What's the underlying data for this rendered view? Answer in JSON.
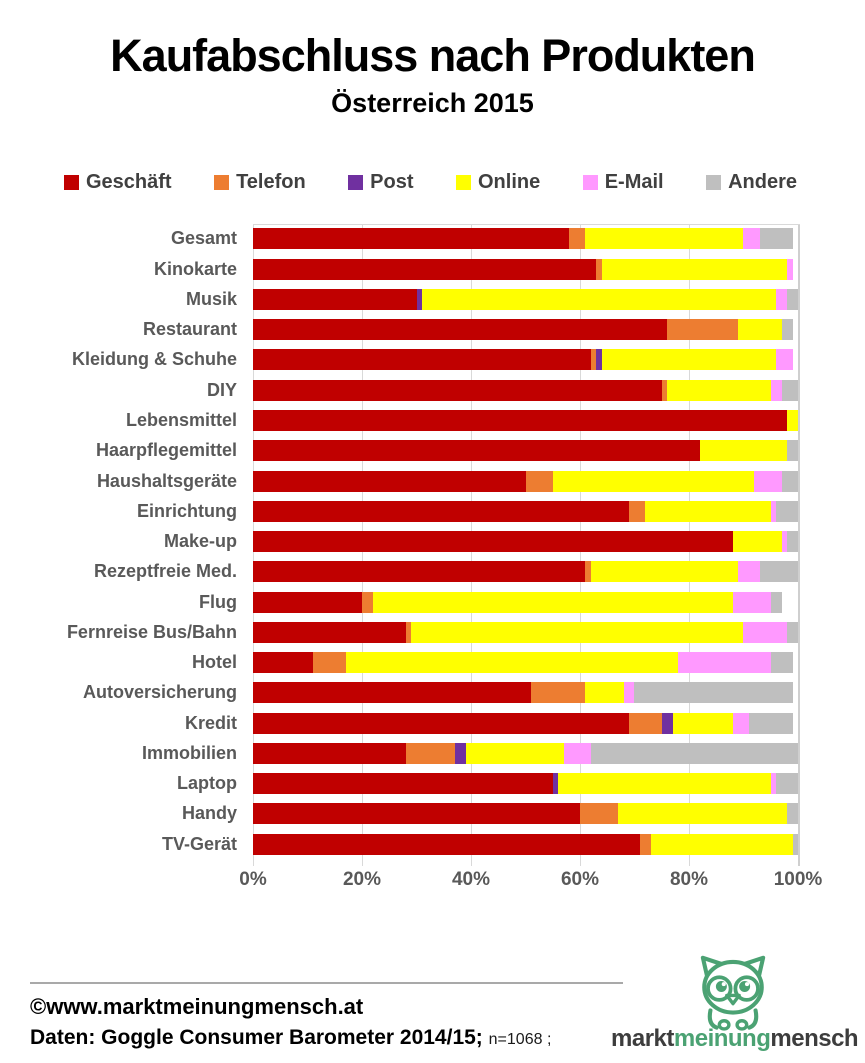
{
  "header": {
    "title": "Kaufabschluss nach Produkten",
    "subtitle": "Österreich 2015"
  },
  "chart_data": {
    "type": "bar",
    "subtype": "horizontal-stacked",
    "title": "Kaufabschluss nach Produkten",
    "subtitle": "Österreich 2015",
    "xlabel": "",
    "ylabel": "",
    "xlim": [
      0,
      100
    ],
    "x_ticks": [
      "0%",
      "20%",
      "40%",
      "60%",
      "80%",
      "100%"
    ],
    "grid": "vertical",
    "legend_position": "top",
    "unit": "percent",
    "categories": [
      "Gesamt",
      "Kinokarte",
      "Musik",
      "Restaurant",
      "Kleidung & Schuhe",
      "DIY",
      "Lebensmittel",
      "Haarpflegemittel",
      "Haushaltsgeräte",
      "Einrichtung",
      "Make-up",
      "Rezeptfreie Med.",
      "Flug",
      "Fernreise Bus/Bahn",
      "Hotel",
      "Autoversicherung",
      "Kredit",
      "Immobilien",
      "Laptop",
      "Handy",
      "TV-Gerät"
    ],
    "series": [
      {
        "name": "Geschäft",
        "color": "#C00000",
        "values": [
          58,
          63,
          30,
          76,
          62,
          75,
          98,
          82,
          50,
          69,
          88,
          61,
          20,
          28,
          11,
          51,
          69,
          28,
          55,
          60,
          71
        ]
      },
      {
        "name": "Telefon",
        "color": "#ED7D31",
        "values": [
          3,
          1,
          0,
          13,
          1,
          1,
          0,
          0,
          5,
          3,
          0,
          1,
          2,
          1,
          6,
          10,
          6,
          9,
          0,
          7,
          2
        ]
      },
      {
        "name": "Post",
        "color": "#7030A0",
        "values": [
          0,
          0,
          1,
          0,
          1,
          0,
          0,
          0,
          0,
          0,
          0,
          0,
          0,
          0,
          0,
          0,
          2,
          2,
          1,
          0,
          0
        ]
      },
      {
        "name": "Online",
        "color": "#FFFF00",
        "values": [
          29,
          34,
          65,
          8,
          32,
          19,
          2,
          16,
          37,
          23,
          9,
          27,
          66,
          61,
          61,
          7,
          11,
          18,
          39,
          31,
          26
        ]
      },
      {
        "name": "E-Mail",
        "color": "#FF99FF",
        "values": [
          3,
          1,
          2,
          0,
          3,
          2,
          0,
          0,
          5,
          1,
          1,
          4,
          7,
          8,
          17,
          2,
          3,
          5,
          1,
          0,
          0
        ]
      },
      {
        "name": "Andere",
        "color": "#BFBFBF",
        "values": [
          6,
          0,
          2,
          2,
          0,
          3,
          0,
          2,
          3,
          4,
          2,
          7,
          2,
          2,
          4,
          29,
          8,
          38,
          4,
          2,
          1
        ]
      }
    ]
  },
  "colors": {
    "category_label": "#595959",
    "axis_label": "#595959",
    "gridline": "#D9D9D9",
    "legend_text": "#404040",
    "logo_green": "#4BA273",
    "logo_dark": "#3D3D3D"
  },
  "footer": {
    "copyright": "©www.marktmeinungmensch.at",
    "source": "Daten: Goggle Consumer Barometer 2014/15;",
    "sample": "n=1068 ;",
    "logo": {
      "part1": "markt",
      "part2": "meinung",
      "part3": "mensch"
    }
  }
}
